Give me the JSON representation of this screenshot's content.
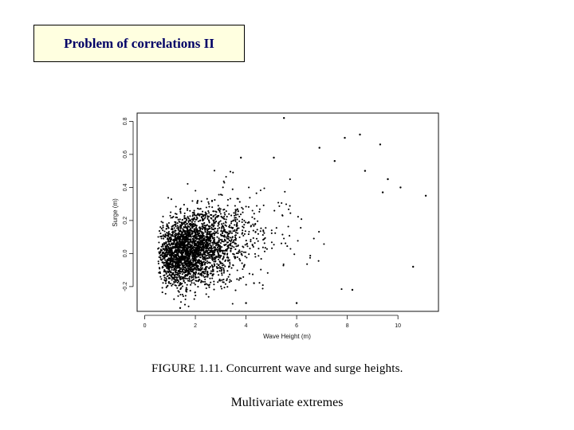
{
  "slide": {
    "title": "Problem of correlations II",
    "caption": "FIGURE 1.11. Concurrent wave and surge heights.",
    "footer": "Multivariate extremes"
  },
  "chart_data": {
    "type": "scatter",
    "xlabel": "Wave Height (m)",
    "ylabel": "Surge (m)",
    "xlim": [
      -0.3,
      11.6
    ],
    "ylim": [
      -0.35,
      0.85
    ],
    "xticks": [
      0,
      2,
      4,
      6,
      8,
      10
    ],
    "yticks": [
      -0.2,
      0.0,
      0.2,
      0.4,
      0.6,
      0.8
    ],
    "ytick_labels": [
      "-0.2",
      "0.0",
      "0.2",
      "0.4",
      "0.6",
      "0.8"
    ],
    "grid": false,
    "n_points_approx": 2800,
    "outliers": [
      {
        "x": 5.5,
        "y": 0.82
      },
      {
        "x": 8.5,
        "y": 0.72
      },
      {
        "x": 7.9,
        "y": 0.7
      },
      {
        "x": 9.3,
        "y": 0.66
      },
      {
        "x": 6.9,
        "y": 0.64
      },
      {
        "x": 7.5,
        "y": 0.56
      },
      {
        "x": 11.1,
        "y": 0.35
      },
      {
        "x": 10.6,
        "y": -0.08
      },
      {
        "x": 9.6,
        "y": 0.45
      },
      {
        "x": 10.1,
        "y": 0.4
      },
      {
        "x": 8.2,
        "y": -0.22
      },
      {
        "x": 6.0,
        "y": -0.3
      },
      {
        "x": 4.0,
        "y": -0.3
      },
      {
        "x": 1.4,
        "y": -0.33
      },
      {
        "x": 9.4,
        "y": 0.37
      },
      {
        "x": 8.7,
        "y": 0.5
      },
      {
        "x": 3.8,
        "y": 0.58
      },
      {
        "x": 5.1,
        "y": 0.58
      }
    ]
  }
}
